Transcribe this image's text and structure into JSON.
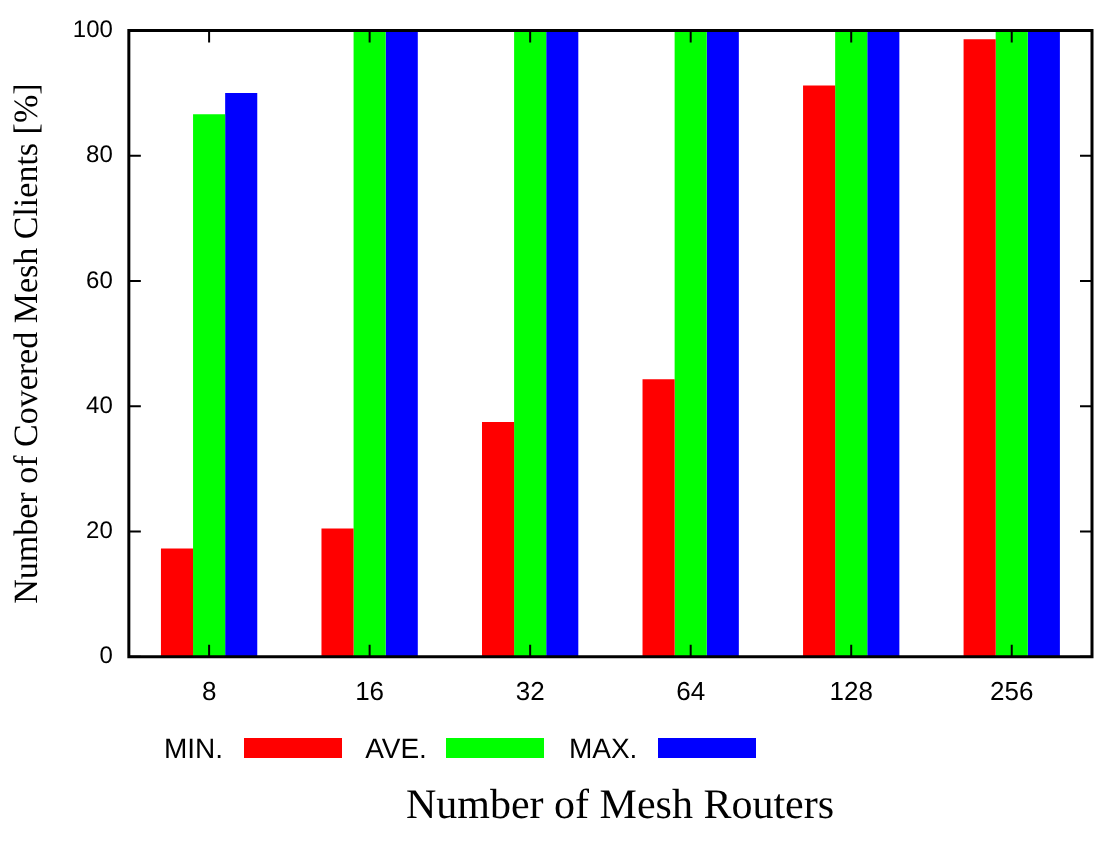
{
  "chart_data": {
    "type": "bar",
    "xlabel": "Number of Mesh Routers",
    "ylabel": "Number of Covered Mesh Clients [%]",
    "categories": [
      "8",
      "16",
      "32",
      "64",
      "128",
      "256"
    ],
    "series": [
      {
        "name": "MIN.",
        "color": "#ff0000",
        "values": [
          17.3,
          20.5,
          37.5,
          44.3,
          91.2,
          98.6
        ]
      },
      {
        "name": "AVE.",
        "color": "#00ff00",
        "values": [
          86.6,
          100,
          100,
          100,
          100,
          100
        ]
      },
      {
        "name": "MAX.",
        "color": "#0000ff",
        "values": [
          90,
          100,
          100,
          100,
          100,
          100
        ]
      }
    ],
    "ylim": [
      0,
      100
    ],
    "yticks": [
      0,
      20,
      40,
      60,
      80,
      100
    ],
    "grid": false,
    "legend": "bottom"
  }
}
